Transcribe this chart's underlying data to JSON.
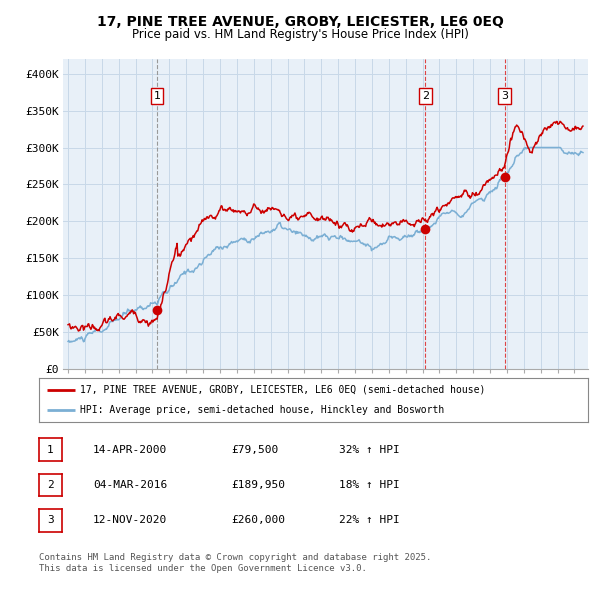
{
  "title_line1": "17, PINE TREE AVENUE, GROBY, LEICESTER, LE6 0EQ",
  "title_line2": "Price paid vs. HM Land Registry's House Price Index (HPI)",
  "ylim": [
    0,
    420000
  ],
  "yticks": [
    0,
    50000,
    100000,
    150000,
    200000,
    250000,
    300000,
    350000,
    400000
  ],
  "ytick_labels": [
    "£0",
    "£50K",
    "£100K",
    "£150K",
    "£200K",
    "£250K",
    "£300K",
    "£350K",
    "£400K"
  ],
  "sale_dates": [
    2000.28,
    2016.17,
    2020.87
  ],
  "sale_prices": [
    79500,
    189950,
    260000
  ],
  "sale_labels": [
    "1",
    "2",
    "3"
  ],
  "legend_line1": "17, PINE TREE AVENUE, GROBY, LEICESTER, LE6 0EQ (semi-detached house)",
  "legend_line2": "HPI: Average price, semi-detached house, Hinckley and Bosworth",
  "table_rows": [
    [
      "1",
      "14-APR-2000",
      "£79,500",
      "32% ↑ HPI"
    ],
    [
      "2",
      "04-MAR-2016",
      "£189,950",
      "18% ↑ HPI"
    ],
    [
      "3",
      "12-NOV-2020",
      "£260,000",
      "22% ↑ HPI"
    ]
  ],
  "footnote": "Contains HM Land Registry data © Crown copyright and database right 2025.\nThis data is licensed under the Open Government Licence v3.0.",
  "line_color_red": "#cc0000",
  "line_color_blue": "#7bafd4",
  "grid_color": "#c8d8e8",
  "chart_bg": "#e8f0f8",
  "background_color": "#ffffff",
  "vline_color_grey": "#aaaaaa",
  "vline_color_red": "#dd4444"
}
